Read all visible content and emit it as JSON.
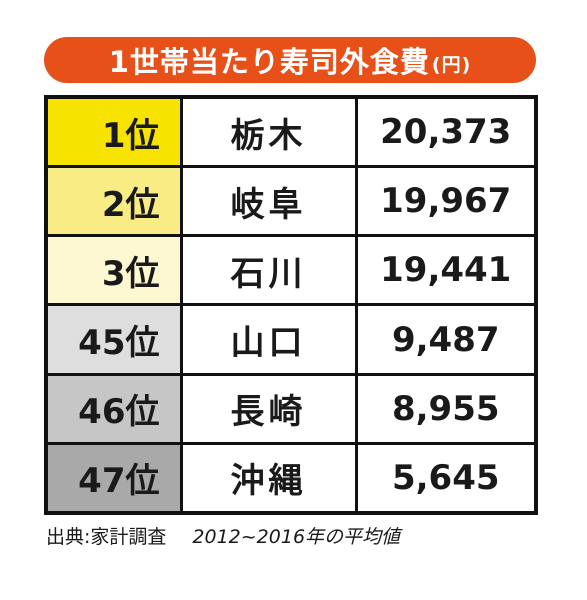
{
  "header": {
    "title": "1世帯当たり寿司外食費",
    "unit": "(円)"
  },
  "table": {
    "rows": [
      [
        "1位",
        "栃木",
        "20,373"
      ],
      [
        "2位",
        "岐阜",
        "19,967"
      ],
      [
        "3位",
        "石川",
        "19,441"
      ],
      [
        "45位",
        "山口",
        "9,487"
      ],
      [
        "46位",
        "長崎",
        "8,955"
      ],
      [
        "47位",
        "沖縄",
        "5,645"
      ]
    ]
  },
  "footer": {
    "source": "出典:家計調査",
    "note": "2012~2016年の平均値"
  }
}
